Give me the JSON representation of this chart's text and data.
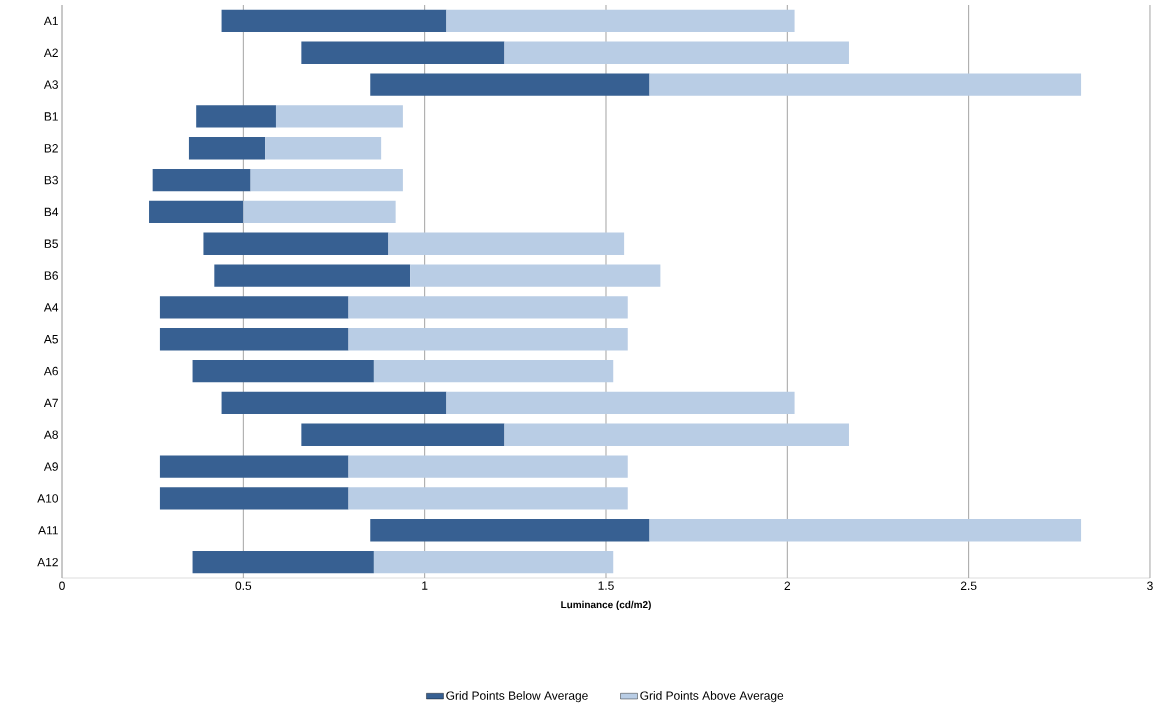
{
  "chart_data": {
    "type": "bar",
    "orientation": "horizontal",
    "categories": [
      "A1",
      "A2",
      "A3",
      "B1",
      "B2",
      "B3",
      "B4",
      "B5",
      "B6",
      "A4",
      "A5",
      "A6",
      "A7",
      "A8",
      "A9",
      "A10",
      "A11",
      "A12"
    ],
    "series": [
      {
        "name": "Grid Points Below Average",
        "color": "#376092",
        "base": [
          0.44,
          0.66,
          0.85,
          0.37,
          0.35,
          0.25,
          0.24,
          0.39,
          0.42,
          0.27,
          0.27,
          0.36,
          0.44,
          0.66,
          0.27,
          0.27,
          0.85,
          0.36
        ],
        "values": [
          0.62,
          0.56,
          0.77,
          0.22,
          0.21,
          0.27,
          0.26,
          0.51,
          0.54,
          0.52,
          0.52,
          0.5,
          0.62,
          0.56,
          0.52,
          0.52,
          0.77,
          0.5
        ]
      },
      {
        "name": "Grid Points Above Average",
        "color": "#b9cde5",
        "base": [
          1.06,
          1.22,
          1.62,
          0.59,
          0.56,
          0.52,
          0.5,
          0.9,
          0.96,
          0.79,
          0.79,
          0.86,
          1.06,
          1.22,
          0.79,
          0.79,
          1.62,
          0.86
        ],
        "values": [
          0.96,
          0.95,
          1.19,
          0.35,
          0.32,
          0.42,
          0.42,
          0.65,
          0.69,
          0.77,
          0.77,
          0.66,
          0.96,
          0.95,
          0.77,
          0.77,
          1.19,
          0.66
        ]
      }
    ],
    "xlim": [
      0,
      3
    ],
    "xticks": [
      0,
      0.5,
      1,
      1.5,
      2,
      2.5,
      3
    ],
    "xlabel": "Luminance (cd/m2)",
    "grid": "x",
    "legend": "bottom"
  }
}
